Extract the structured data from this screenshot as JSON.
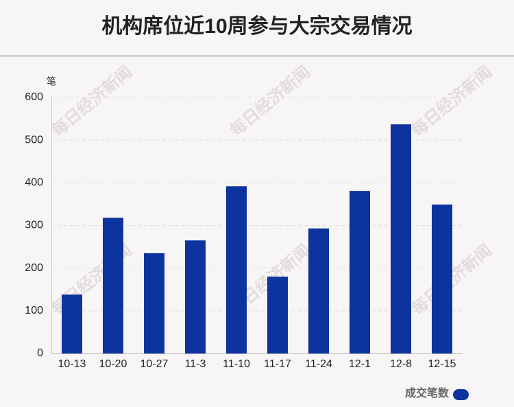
{
  "chart_data": {
    "type": "bar",
    "title": "机构席位近10周参与大宗交易情况",
    "y_label": "笔",
    "watermark": "每日经济新闻",
    "categories": [
      "10-13",
      "10-20",
      "10-27",
      "11-3",
      "11-10",
      "11-17",
      "11-24",
      "12-1",
      "12-8",
      "12-15"
    ],
    "series": [
      {
        "name": "成交笔数",
        "color": "#0d339e",
        "values": [
          138,
          318,
          235,
          265,
          392,
          180,
          293,
          381,
          537,
          349
        ]
      }
    ],
    "ylim": [
      0,
      600
    ],
    "yticks": [
      0,
      100,
      200,
      300,
      400,
      500,
      600
    ],
    "grid": true,
    "legend": "bottom-right"
  }
}
